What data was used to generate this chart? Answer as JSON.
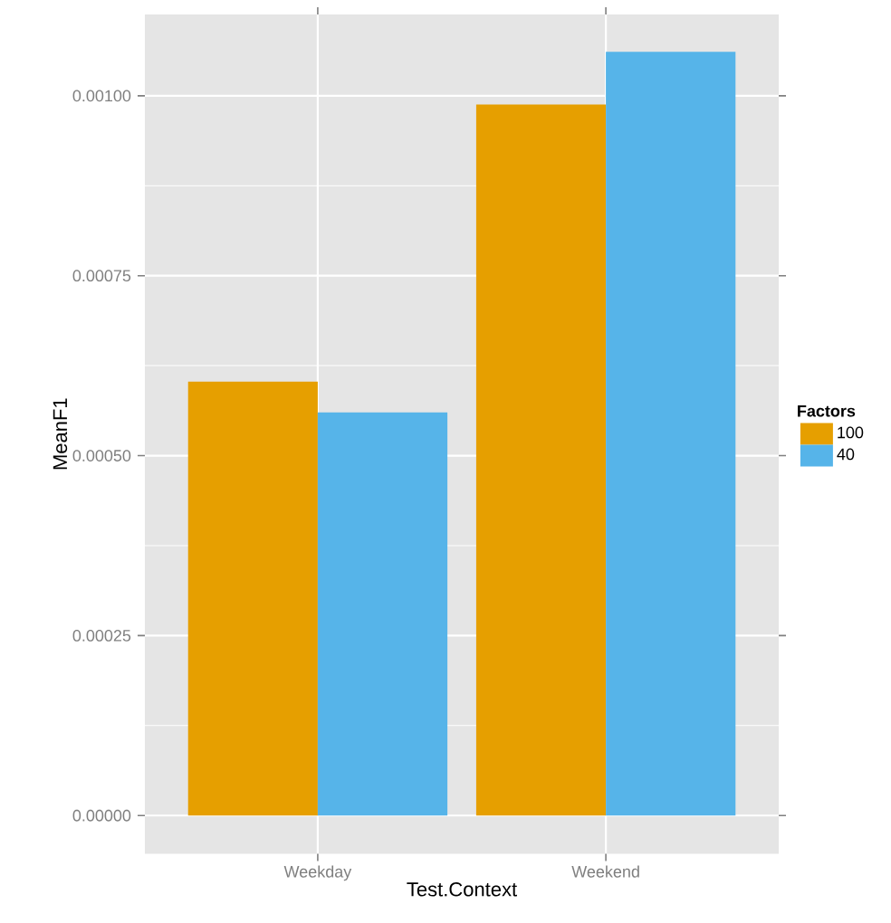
{
  "chart_data": {
    "type": "bar",
    "xlabel": "Test.Context",
    "ylabel": "MeanF1",
    "legend_title": "Factors",
    "categories": [
      "Weekday",
      "Weekend"
    ],
    "series": [
      {
        "name": "100",
        "color": "#e69f00",
        "values": [
          0.000603,
          0.000988
        ]
      },
      {
        "name": "40",
        "color": "#56b4e9",
        "values": [
          0.00056,
          0.001061
        ]
      }
    ],
    "ylim": [
      -5.3e-05,
      0.001113
    ],
    "yticks": [
      {
        "value": 0,
        "label": "0.00000"
      },
      {
        "value": 0.00025,
        "label": "0.00025"
      },
      {
        "value": 0.0005,
        "label": "0.00050"
      },
      {
        "value": 0.00075,
        "label": "0.00075"
      },
      {
        "value": 0.001,
        "label": "0.00100"
      }
    ],
    "grid": true,
    "legend": "right"
  }
}
